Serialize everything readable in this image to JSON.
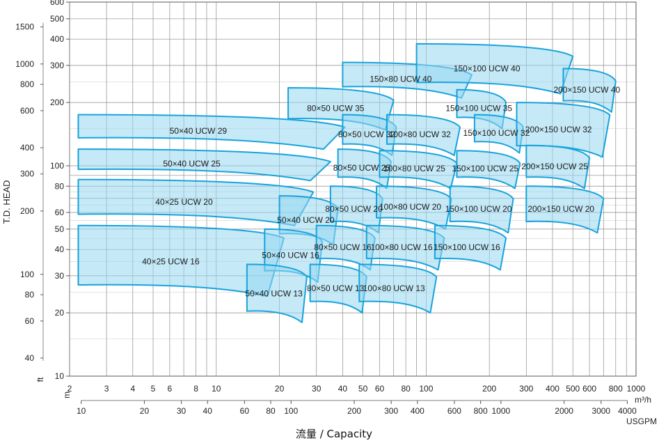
{
  "chart_data": {
    "type": "area",
    "title": "",
    "xlabel": "流量 / Capacity",
    "ylabel": "T.D. HEAD",
    "x_unit_primary": "m3/h",
    "x_unit_secondary": "USGPM",
    "y_unit_primary": "m",
    "y_unit_secondary": "ft",
    "x_scale": "log",
    "y_scale": "log",
    "xlim": [
      2,
      1000
    ],
    "ylim": [
      10,
      600
    ],
    "grid": true,
    "x_ticks_m3h": [
      "2",
      "3",
      "4",
      "5",
      "6",
      "8",
      "10",
      "20",
      "30",
      "40",
      "50",
      "60",
      "80",
      "100",
      "200",
      "300",
      "400",
      "500",
      "600",
      "800",
      "1000"
    ],
    "x_ticks_usgpm": [
      "10",
      "20",
      "30",
      "40",
      "60",
      "80",
      "100",
      "200",
      "300",
      "400",
      "600",
      "800",
      "1000",
      "2000",
      "3000",
      "4000"
    ],
    "y_ticks_m": [
      "10",
      "20",
      "30",
      "40",
      "50",
      "60",
      "80",
      "100",
      "200",
      "300",
      "400",
      "500",
      "600"
    ],
    "y_ticks_ft": [
      "40",
      "60",
      "80",
      "100",
      "200",
      "300",
      "400",
      "600",
      "800",
      "1000",
      "1500"
    ],
    "series": [
      {
        "name": "50×40 UCW 29",
        "q_range": [
          2.2,
          41
        ],
        "h_range": [
          120,
          175
        ]
      },
      {
        "name": "50×40 UCW 25",
        "q_range": [
          2.2,
          35
        ],
        "h_range": [
          85,
          120
        ]
      },
      {
        "name": "40×25 UCW 20",
        "q_range": [
          2.2,
          29
        ],
        "h_range": [
          52,
          86
        ]
      },
      {
        "name": "40×25 UCW 16",
        "q_range": [
          2.2,
          21
        ],
        "h_range": [
          24,
          52
        ]
      },
      {
        "name": "50×40 UCW 20",
        "q_range": [
          20,
          38
        ],
        "h_range": [
          42,
          72
        ]
      },
      {
        "name": "50×40 UCW 16",
        "q_range": [
          17,
          32
        ],
        "h_range": [
          28,
          50
        ]
      },
      {
        "name": "50×40 UCW 13",
        "q_range": [
          14,
          27
        ],
        "h_range": [
          18,
          34
        ]
      },
      {
        "name": "80×50 UCW 35",
        "q_range": [
          22,
          70
        ],
        "h_range": [
          148,
          235
        ]
      },
      {
        "name": "80×50 UCW 32",
        "q_range": [
          40,
          72
        ],
        "h_range": [
          112,
          175
        ]
      },
      {
        "name": "80×50 UCW 25",
        "q_range": [
          38,
          68
        ],
        "h_range": [
          78,
          120
        ]
      },
      {
        "name": "80×50 UCW 20",
        "q_range": [
          35,
          62
        ],
        "h_range": [
          48,
          80
        ]
      },
      {
        "name": "80×50 UCW 16",
        "q_range": [
          30,
          57
        ],
        "h_range": [
          32,
          52
        ]
      },
      {
        "name": "80×50 UCW 13",
        "q_range": [
          28,
          52
        ],
        "h_range": [
          20,
          34
        ]
      },
      {
        "name": "150×80 UCW 40",
        "q_range": [
          40,
          165
        ],
        "h_range": [
          210,
          310
        ]
      },
      {
        "name": "100×80 UCW 32",
        "q_range": [
          65,
          145
        ],
        "h_range": [
          112,
          175
        ]
      },
      {
        "name": "100×80 UCW 25",
        "q_range": [
          60,
          140
        ],
        "h_range": [
          78,
          118
        ]
      },
      {
        "name": "100×80 UCW 20",
        "q_range": [
          58,
          132
        ],
        "h_range": [
          50,
          80
        ]
      },
      {
        "name": "100×80 UCW 16",
        "q_range": [
          52,
          122
        ],
        "h_range": [
          32,
          52
        ]
      },
      {
        "name": "100×80 UCW 13",
        "q_range": [
          48,
          112
        ],
        "h_range": [
          20,
          34
        ]
      },
      {
        "name": "150×100 UCW 40",
        "q_range": [
          90,
          500
        ],
        "h_range": [
          220,
          380
        ]
      },
      {
        "name": "150×100 UCW 35",
        "q_range": [
          140,
          240
        ],
        "h_range": [
          150,
          230
        ]
      },
      {
        "name": "150×100 UCW 32",
        "q_range": [
          170,
          290
        ],
        "h_range": [
          115,
          175
        ]
      },
      {
        "name": "150×100 UCW 25",
        "q_range": [
          140,
          280
        ],
        "h_range": [
          78,
          118
        ]
      },
      {
        "name": "150×100 UCW 20",
        "q_range": [
          130,
          260
        ],
        "h_range": [
          48,
          80
        ]
      },
      {
        "name": "150×100 UCW 16",
        "q_range": [
          110,
          240
        ],
        "h_range": [
          32,
          52
        ]
      },
      {
        "name": "200×150 UCW 40",
        "q_range": [
          450,
          800
        ],
        "h_range": [
          180,
          290
        ]
      },
      {
        "name": "200×150 UCW 32",
        "q_range": [
          270,
          750
        ],
        "h_range": [
          110,
          200
        ]
      },
      {
        "name": "200×150 UCW 25",
        "q_range": [
          300,
          600
        ],
        "h_range": [
          78,
          125
        ]
      },
      {
        "name": "200×150 UCW 20",
        "q_range": [
          300,
          700
        ],
        "h_range": [
          48,
          80
        ]
      }
    ]
  }
}
